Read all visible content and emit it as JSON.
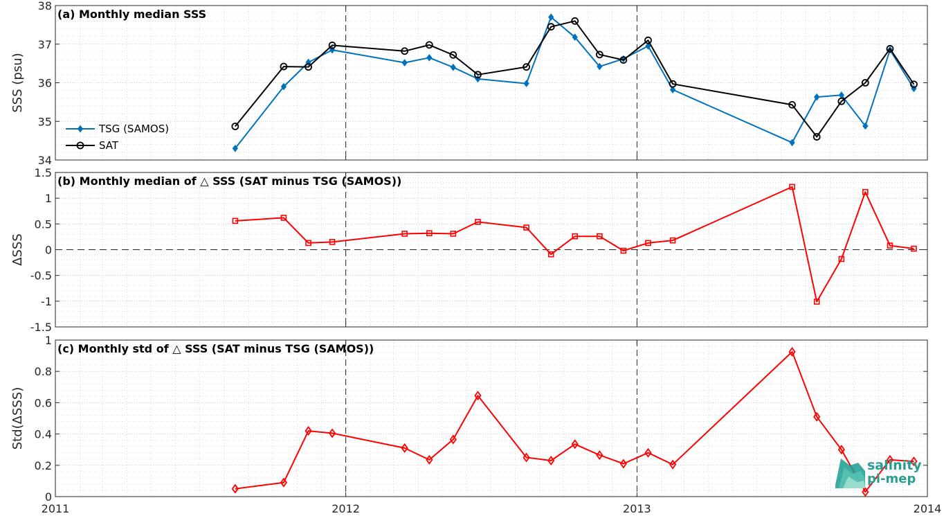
{
  "chart_data": [
    {
      "type": "line",
      "title": "(a) Monthly median SSS",
      "xlabel": "",
      "ylabel": "SSS (psu)",
      "xlim": [
        "2011-01-01",
        "2014-01-01"
      ],
      "ylim": [
        34,
        38
      ],
      "yticks": [
        "34",
        "35",
        "36",
        "37",
        "38"
      ],
      "grid": true,
      "legend_position": "bottom-left",
      "colors": {
        "TSG (SAMOS)": "#0072BD",
        "SAT": "#000000"
      },
      "series": [
        {
          "name": "TSG (SAMOS)",
          "marker": "diamond",
          "x": [
            "2011-08-15",
            "2011-10-15",
            "2011-11-15",
            "2011-12-15",
            "2012-03-15",
            "2012-04-15",
            "2012-05-15",
            "2012-06-15",
            "2012-08-15",
            "2012-09-15",
            "2012-10-15",
            "2012-11-15",
            "2012-12-15",
            "2013-01-15",
            "2013-02-15",
            "2013-07-15",
            "2013-08-15",
            "2013-09-15",
            "2013-10-15",
            "2013-11-15",
            "2013-12-15"
          ],
          "y": [
            34.3,
            35.9,
            36.53,
            36.85,
            36.52,
            36.65,
            36.4,
            36.1,
            35.98,
            37.7,
            37.18,
            36.42,
            36.62,
            36.95,
            35.82,
            34.45,
            35.63,
            35.68,
            34.88,
            36.85,
            35.85
          ]
        },
        {
          "name": "SAT",
          "marker": "circle",
          "x": [
            "2011-08-15",
            "2011-10-15",
            "2011-11-15",
            "2011-12-15",
            "2012-03-15",
            "2012-04-15",
            "2012-05-15",
            "2012-06-15",
            "2012-08-15",
            "2012-09-15",
            "2012-10-15",
            "2012-11-15",
            "2012-12-15",
            "2013-01-15",
            "2013-02-15",
            "2013-07-15",
            "2013-08-15",
            "2013-09-15",
            "2013-10-15",
            "2013-11-15",
            "2013-12-15"
          ],
          "y": [
            34.87,
            36.42,
            36.41,
            36.97,
            36.82,
            36.98,
            36.72,
            36.21,
            36.41,
            37.45,
            37.6,
            36.73,
            36.59,
            37.1,
            35.97,
            35.43,
            34.6,
            35.52,
            36.0,
            36.88,
            35.96
          ]
        }
      ]
    },
    {
      "type": "line",
      "title": "(b) Monthly median of △ SSS (SAT minus TSG (SAMOS))",
      "xlabel": "",
      "ylabel": "ΔSSS",
      "xlim": [
        "2011-01-01",
        "2014-01-01"
      ],
      "ylim": [
        -1.5,
        1.5
      ],
      "yticks": [
        "-1.5",
        "-1",
        "-0.5",
        "0",
        "0.5",
        "1",
        "1.5"
      ],
      "grid": true,
      "reference_line_y": 0,
      "colors": {
        "line": "#FF0000"
      },
      "series": [
        {
          "marker": "square",
          "x": [
            "2011-08-15",
            "2011-10-15",
            "2011-11-15",
            "2011-12-15",
            "2012-03-15",
            "2012-04-15",
            "2012-05-15",
            "2012-06-15",
            "2012-08-15",
            "2012-09-15",
            "2012-10-15",
            "2012-11-15",
            "2012-12-15",
            "2013-01-15",
            "2013-02-15",
            "2013-07-15",
            "2013-08-15",
            "2013-09-15",
            "2013-10-15",
            "2013-11-15",
            "2013-12-15"
          ],
          "y": [
            0.56,
            0.62,
            0.13,
            0.15,
            0.31,
            0.32,
            0.31,
            0.54,
            0.43,
            -0.09,
            0.26,
            0.26,
            -0.02,
            0.13,
            0.18,
            1.22,
            -1.01,
            -0.18,
            1.12,
            0.08,
            0.02
          ]
        }
      ]
    },
    {
      "type": "line",
      "title": "(c) Monthly std of △ SSS (SAT minus TSG (SAMOS))",
      "xlabel": "",
      "ylabel": "Std(ΔSSS)",
      "xlim": [
        "2011-01-01",
        "2014-01-01"
      ],
      "ylim": [
        0,
        1
      ],
      "yticks": [
        "0",
        "0.2",
        "0.4",
        "0.6",
        "0.8",
        "1"
      ],
      "xticks": [
        "2011",
        "2012",
        "2013",
        "2014"
      ],
      "grid": true,
      "colors": {
        "line": "#FF0000"
      },
      "series": [
        {
          "marker": "diamond",
          "x": [
            "2011-08-15",
            "2011-10-15",
            "2011-11-15",
            "2011-12-15",
            "2012-03-15",
            "2012-04-15",
            "2012-05-15",
            "2012-06-15",
            "2012-08-15",
            "2012-09-15",
            "2012-10-15",
            "2012-11-15",
            "2012-12-15",
            "2013-01-15",
            "2013-02-15",
            "2013-07-15",
            "2013-08-15",
            "2013-09-15",
            "2013-10-15",
            "2013-11-15",
            "2013-12-15"
          ],
          "y": [
            0.05,
            0.09,
            0.42,
            0.405,
            0.31,
            0.235,
            0.365,
            0.645,
            0.25,
            0.23,
            0.335,
            0.265,
            0.21,
            0.28,
            0.205,
            0.925,
            0.51,
            0.3,
            0.03,
            0.235,
            0.225
          ]
        }
      ]
    }
  ],
  "logo": {
    "line1": "salinity",
    "line2": "pi-mep"
  }
}
